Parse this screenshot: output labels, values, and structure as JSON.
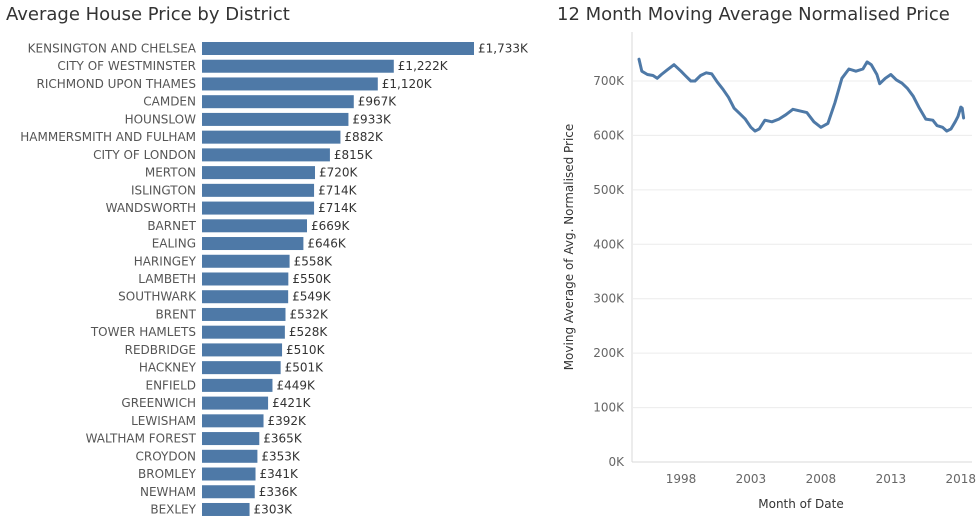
{
  "chart_data": [
    {
      "type": "bar",
      "orientation": "horizontal",
      "title": "Average House Price by District",
      "color": "#4e79a7",
      "categories": [
        "KENSINGTON AND CHELSEA",
        "CITY OF WESTMINSTER",
        "RICHMOND UPON THAMES",
        "CAMDEN",
        "HOUNSLOW",
        "HAMMERSMITH AND FULHAM",
        "CITY OF LONDON",
        "MERTON",
        "ISLINGTON",
        "WANDSWORTH",
        "BARNET",
        "EALING",
        "HARINGEY",
        "LAMBETH",
        "SOUTHWARK",
        "BRENT",
        "TOWER HAMLETS",
        "REDBRIDGE",
        "HACKNEY",
        "ENFIELD",
        "GREENWICH",
        "LEWISHAM",
        "WALTHAM FOREST",
        "CROYDON",
        "BROMLEY",
        "NEWHAM",
        "BEXLEY"
      ],
      "values": [
        1733,
        1222,
        1120,
        967,
        933,
        882,
        815,
        720,
        714,
        714,
        669,
        646,
        558,
        550,
        549,
        532,
        528,
        510,
        501,
        449,
        421,
        392,
        365,
        353,
        341,
        336,
        303
      ],
      "data_labels": [
        "£1,733K",
        "£1,222K",
        "£1,120K",
        "£967K",
        "£933K",
        "£882K",
        "£815K",
        "£720K",
        "£714K",
        "£714K",
        "£669K",
        "£646K",
        "£558K",
        "£550K",
        "£549K",
        "£532K",
        "£528K",
        "£510K",
        "£501K",
        "£449K",
        "£421K",
        "£392K",
        "£365K",
        "£353K",
        "£341K",
        "£336K",
        "£303K"
      ],
      "unit": "K"
    },
    {
      "type": "line",
      "title": "12 Month Moving Average Normalised Price",
      "xlabel": "Month of Date",
      "ylabel": "Moving Average of Avg. Normalised Price",
      "color": "#4e79a7",
      "grid": true,
      "xlim": [
        1994.5,
        2018.8
      ],
      "ylim": [
        0,
        790
      ],
      "x_ticks": [
        "1998",
        "2003",
        "2008",
        "2013",
        "2018"
      ],
      "y_ticks": [
        "0K",
        "100K",
        "200K",
        "300K",
        "400K",
        "500K",
        "600K",
        "700K"
      ],
      "y_tick_values": [
        0,
        100,
        200,
        300,
        400,
        500,
        600,
        700
      ],
      "x": [
        1995.0,
        1995.2,
        1995.6,
        1996.0,
        1996.3,
        1996.6,
        1997.0,
        1997.5,
        1998.0,
        1998.3,
        1998.7,
        1999.0,
        1999.4,
        1999.8,
        2000.2,
        2000.6,
        2001.0,
        2001.4,
        2001.8,
        2002.2,
        2002.6,
        2003.0,
        2003.3,
        2003.6,
        2004.0,
        2004.5,
        2005.0,
        2005.5,
        2006.0,
        2006.5,
        2007.0,
        2007.5,
        2008.0,
        2008.5,
        2009.0,
        2009.5,
        2010.0,
        2010.5,
        2011.0,
        2011.3,
        2011.6,
        2012.0,
        2012.2,
        2012.6,
        2013.0,
        2013.4,
        2013.8,
        2014.2,
        2014.6,
        2015.0,
        2015.5,
        2016.0,
        2016.3,
        2016.7,
        2017.0,
        2017.3,
        2017.6,
        2017.8,
        2018.0,
        2018.1,
        2018.2
      ],
      "y": [
        740,
        718,
        712,
        710,
        705,
        712,
        720,
        730,
        718,
        710,
        700,
        700,
        710,
        715,
        713,
        698,
        685,
        670,
        650,
        640,
        630,
        615,
        608,
        612,
        628,
        625,
        630,
        638,
        648,
        645,
        642,
        625,
        615,
        622,
        660,
        705,
        722,
        718,
        722,
        735,
        730,
        712,
        695,
        705,
        712,
        702,
        696,
        686,
        672,
        652,
        630,
        628,
        618,
        615,
        608,
        612,
        625,
        635,
        652,
        650,
        632
      ]
    }
  ]
}
